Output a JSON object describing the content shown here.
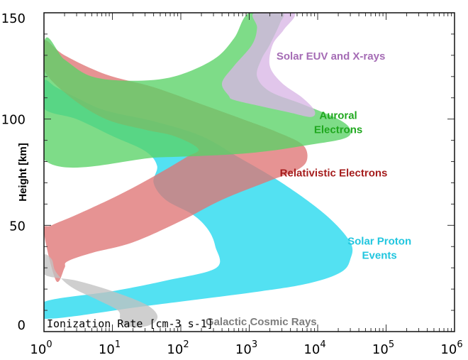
{
  "chart_data": {
    "type": "area",
    "xlabel": "Ionization Rate [cm-3 s-1]",
    "ylabel": "Height [km]",
    "xscale": "log",
    "xlim": [
      1,
      1000000
    ],
    "ylim": [
      0,
      150
    ],
    "xtick_labels": [
      {
        "base": "10",
        "exp": "0"
      },
      {
        "base": "10",
        "exp": "1"
      },
      {
        "base": "10",
        "exp": "2"
      },
      {
        "base": "10",
        "exp": "3"
      },
      {
        "base": "10",
        "exp": "4"
      },
      {
        "base": "10",
        "exp": "5"
      },
      {
        "base": "10",
        "exp": "6"
      }
    ],
    "ytick_labels": [
      "0",
      "50",
      "100",
      "150"
    ],
    "series": [
      {
        "name": "Solar Proton Events",
        "label_lines": [
          "Solar Proton",
          "Events"
        ],
        "color": "#22d8ee",
        "lower": [
          [
            1.0,
            6
          ],
          [
            30,
            12
          ],
          [
            1500,
            19
          ],
          [
            8000,
            23
          ],
          [
            22000,
            28
          ],
          [
            30000,
            34
          ],
          [
            30000,
            42
          ],
          [
            13000,
            55
          ],
          [
            3000,
            70
          ],
          [
            700,
            82
          ],
          [
            200,
            92
          ],
          [
            40,
            99
          ],
          [
            8,
            104
          ],
          [
            3,
            110
          ],
          [
            1.5,
            115
          ],
          [
            1.0,
            118
          ]
        ],
        "upper": [
          [
            1.0,
            105
          ],
          [
            3,
            100
          ],
          [
            10,
            92
          ],
          [
            30,
            85
          ],
          [
            45,
            78
          ],
          [
            40,
            70
          ],
          [
            60,
            62
          ],
          [
            150,
            55
          ],
          [
            250,
            48
          ],
          [
            320,
            40
          ],
          [
            330,
            30
          ],
          [
            60,
            24
          ],
          [
            10,
            19
          ],
          [
            1.0,
            14
          ]
        ]
      },
      {
        "name": "Relativistic Electrons",
        "label_lines": [
          "Relativistic Electrons"
        ],
        "color": "#df7575",
        "lower": [
          [
            1.5,
            24
          ],
          [
            2,
            30
          ],
          [
            2.2,
            33
          ],
          [
            5,
            37
          ],
          [
            20,
            42
          ],
          [
            100,
            52
          ],
          [
            400,
            62
          ],
          [
            2000,
            71
          ],
          [
            5000,
            76
          ],
          [
            7000,
            81
          ],
          [
            6000,
            88
          ],
          [
            2500,
            94
          ],
          [
            800,
            100
          ],
          [
            200,
            107
          ],
          [
            40,
            115
          ],
          [
            8,
            121
          ],
          [
            2,
            130
          ],
          [
            1.0,
            137
          ]
        ],
        "upper": [
          [
            1.0,
            123
          ],
          [
            2.5,
            110
          ],
          [
            8,
            100
          ],
          [
            30,
            95
          ],
          [
            80,
            92
          ],
          [
            180,
            86
          ],
          [
            120,
            82
          ],
          [
            40,
            73
          ],
          [
            12,
            64
          ],
          [
            3,
            55
          ],
          [
            1.3,
            50
          ],
          [
            1.0,
            47
          ]
        ]
      },
      {
        "name": "Auroral Electrons",
        "label_lines": [
          "Auroral",
          "Electrons"
        ],
        "color": "#5ad266",
        "lower": [
          [
            1.0,
            81
          ],
          [
            50,
            82
          ],
          [
            1000,
            84
          ],
          [
            8000,
            88
          ],
          [
            25000,
            91
          ],
          [
            30000,
            95
          ],
          [
            20000,
            100
          ],
          [
            6000,
            107
          ],
          [
            2000,
            113
          ],
          [
            1300,
            120
          ],
          [
            1500,
            128
          ],
          [
            2000,
            135
          ],
          [
            2800,
            145
          ],
          [
            3000,
            150
          ]
        ],
        "upper": [
          [
            1000,
            150
          ],
          [
            600,
            138
          ],
          [
            300,
            128
          ],
          [
            80,
            120
          ],
          [
            20,
            118
          ],
          [
            5,
            120
          ],
          [
            2,
            128
          ],
          [
            1.0,
            136
          ]
        ]
      },
      {
        "name": "Solar EUV and X-rays",
        "label_lines": [
          "Solar EUV and X-rays"
        ],
        "color": "#d8b6e6",
        "lower": [
          [
            600,
            109
          ],
          [
            1500,
            106
          ],
          [
            4000,
            103
          ],
          [
            8000,
            101
          ],
          [
            9000,
            104
          ],
          [
            6000,
            110
          ],
          [
            3000,
            117
          ],
          [
            2000,
            125
          ],
          [
            2200,
            135
          ],
          [
            3200,
            142
          ],
          [
            4500,
            150
          ]
        ],
        "upper": [
          [
            1200,
            150
          ],
          [
            1300,
            143
          ],
          [
            1100,
            135
          ],
          [
            600,
            125
          ],
          [
            400,
            117
          ],
          [
            500,
            111
          ]
        ]
      },
      {
        "name": "Galactic Cosmic Rays",
        "label_lines": [
          "Galactic Cosmic Rays"
        ],
        "color": "#c2c2c2",
        "lower": [
          [
            1.0,
            27
          ],
          [
            3,
            24
          ],
          [
            10,
            19
          ],
          [
            30,
            13
          ],
          [
            45,
            8
          ],
          [
            40,
            4
          ],
          [
            25,
            2
          ],
          [
            15,
            3
          ]
        ],
        "upper": [
          [
            13,
            6
          ],
          [
            12,
            10
          ],
          [
            6,
            15
          ],
          [
            2.5,
            21
          ],
          [
            1.5,
            28
          ],
          [
            1.3,
            34
          ],
          [
            1.0,
            36
          ]
        ]
      }
    ],
    "grid": false
  }
}
